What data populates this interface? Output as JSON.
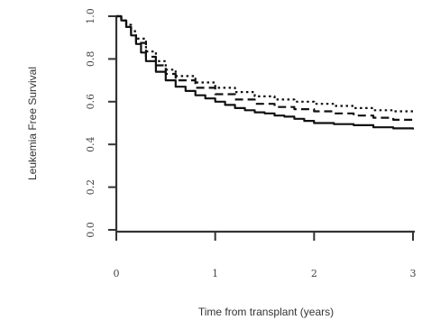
{
  "chart_data": {
    "type": "line",
    "title": "",
    "xlabel": "Time from transplant (years)",
    "ylabel": "Leukemia Free Survival",
    "xlim": [
      0,
      3
    ],
    "ylim": [
      0,
      1
    ],
    "x_ticks": [
      0,
      1,
      2,
      3
    ],
    "x_tick_labels": [
      "0",
      "1",
      "2",
      "3"
    ],
    "y_ticks": [
      0,
      0.2,
      0.4,
      0.6,
      0.8,
      1
    ],
    "y_tick_labels": [
      "0.0",
      "0.2",
      "0.4",
      "0.6",
      "0.8",
      "1.0"
    ],
    "grid": false,
    "legend": "none",
    "step": true,
    "series": [
      {
        "style": "solid",
        "x": [
          0,
          0.05,
          0.1,
          0.15,
          0.2,
          0.25,
          0.3,
          0.4,
          0.5,
          0.6,
          0.7,
          0.8,
          0.9,
          1.0,
          1.1,
          1.2,
          1.3,
          1.4,
          1.5,
          1.6,
          1.7,
          1.8,
          1.9,
          2.0,
          2.2,
          2.4,
          2.6,
          2.8,
          3.0
        ],
        "y": [
          1.0,
          0.98,
          0.95,
          0.91,
          0.87,
          0.83,
          0.79,
          0.74,
          0.7,
          0.67,
          0.65,
          0.63,
          0.615,
          0.6,
          0.585,
          0.57,
          0.56,
          0.55,
          0.545,
          0.535,
          0.53,
          0.52,
          0.51,
          0.5,
          0.495,
          0.49,
          0.48,
          0.475,
          0.47
        ]
      },
      {
        "style": "dashed",
        "x": [
          0,
          0.05,
          0.1,
          0.15,
          0.2,
          0.3,
          0.4,
          0.5,
          0.6,
          0.8,
          1.0,
          1.2,
          1.4,
          1.6,
          1.8,
          2.0,
          2.2,
          2.4,
          2.6,
          2.8,
          3.0
        ],
        "y": [
          1.0,
          0.98,
          0.95,
          0.91,
          0.875,
          0.81,
          0.77,
          0.73,
          0.7,
          0.665,
          0.635,
          0.61,
          0.59,
          0.575,
          0.565,
          0.555,
          0.545,
          0.535,
          0.525,
          0.515,
          0.51
        ]
      },
      {
        "style": "dotted",
        "x": [
          0,
          0.05,
          0.1,
          0.15,
          0.2,
          0.3,
          0.4,
          0.5,
          0.6,
          0.8,
          1.0,
          1.2,
          1.4,
          1.6,
          1.8,
          2.0,
          2.2,
          2.4,
          2.6,
          2.8,
          3.0
        ],
        "y": [
          1.0,
          0.98,
          0.96,
          0.93,
          0.895,
          0.835,
          0.79,
          0.75,
          0.72,
          0.69,
          0.665,
          0.645,
          0.625,
          0.61,
          0.6,
          0.59,
          0.58,
          0.57,
          0.56,
          0.555,
          0.55
        ]
      }
    ]
  }
}
